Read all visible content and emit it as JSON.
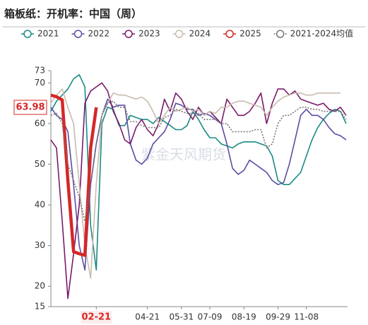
{
  "chart_data": {
    "type": "line",
    "title": "箱板纸：开机率：中国（周）",
    "watermark": "紫金天风期货",
    "categories": [
      null,
      null,
      null,
      null,
      null,
      null,
      null,
      null,
      "02-21",
      null,
      null,
      null,
      null,
      null,
      null,
      null,
      null,
      "04-21",
      null,
      null,
      null,
      null,
      null,
      "05-31",
      null,
      null,
      null,
      null,
      "07-09",
      null,
      null,
      null,
      null,
      null,
      "08-19",
      null,
      null,
      null,
      null,
      null,
      "09-29",
      null,
      null,
      null,
      null,
      "11-08",
      null,
      null,
      null,
      null,
      null,
      null,
      null
    ],
    "ylim": [
      15,
      73
    ],
    "yticks": [
      15,
      20,
      30,
      40,
      50,
      60,
      70,
      73
    ],
    "series": [
      {
        "name": "2021",
        "color": "#1a8a85",
        "values": [
          63,
          65.5,
          67,
          68.5,
          71,
          72,
          69,
          35,
          24,
          60,
          64,
          63.5,
          59.5,
          59.5,
          62,
          61.5,
          61,
          61,
          60,
          61.5,
          60.5,
          59.5,
          58.5,
          58.5,
          59.5,
          63,
          61,
          58.5,
          56.5,
          56.5,
          55,
          54.5,
          54,
          55,
          55.5,
          55.5,
          55.5,
          55,
          54.5,
          52,
          46,
          45,
          45,
          46.5,
          48,
          52,
          56,
          59,
          61,
          62.5,
          63.5,
          63,
          60
        ]
      },
      {
        "name": "2022",
        "color": "#5a4ea3",
        "values": [
          64,
          62,
          61,
          58,
          45,
          30,
          24,
          45,
          55,
          62,
          66,
          64,
          64.5,
          64.5,
          55,
          51,
          50,
          51.5,
          55,
          56.5,
          58,
          61,
          65,
          64.5,
          63.5,
          63.5,
          62,
          62.5,
          62,
          61,
          60,
          55,
          49,
          47.5,
          48.5,
          51,
          50,
          49,
          48,
          46,
          45,
          45.5,
          50,
          56,
          62,
          63.5,
          62,
          62,
          61,
          59,
          57.5,
          57,
          56
        ]
      },
      {
        "name": "2023",
        "color": "#7a1a6a",
        "values": [
          56,
          54,
          36,
          17,
          28,
          40,
          65,
          68,
          69,
          70,
          68,
          63,
          60,
          56,
          55,
          59,
          61,
          58.5,
          57,
          60,
          66,
          63,
          67.5,
          66,
          63,
          61,
          64,
          62,
          63,
          61.5,
          60,
          66,
          64,
          62,
          62,
          63,
          65,
          67.5,
          60,
          65,
          68.5,
          68.5,
          67,
          68,
          66,
          65.5,
          65,
          64.5,
          65,
          63.5,
          63,
          64,
          62
        ]
      },
      {
        "name": "2024",
        "color": "#c9bcae",
        "values": [
          65,
          67,
          68.5,
          64,
          60,
          45,
          30,
          22,
          45,
          62,
          65,
          67.5,
          67,
          67,
          66.5,
          66,
          66.5,
          65.5,
          63,
          60,
          62,
          64,
          63,
          63.5,
          64,
          63,
          63.5,
          62,
          63,
          62.5,
          64,
          64,
          65,
          65.5,
          65.5,
          65,
          64.5,
          64,
          62,
          64,
          65.5,
          66.5,
          67,
          67.5,
          67.5,
          67,
          67,
          67.5,
          67.5,
          67.5,
          67.5,
          67.5,
          null
        ]
      },
      {
        "name": "2025",
        "color": "#d62728",
        "values": [
          67,
          66.6,
          65.8,
          46,
          28.5,
          28,
          27.6,
          54,
          63.98,
          null,
          null,
          null,
          null,
          null,
          null,
          null,
          null,
          null,
          null,
          null,
          null,
          null,
          null,
          null,
          null,
          null,
          null,
          null,
          null,
          null,
          null,
          null,
          null,
          null,
          null,
          null,
          null,
          null,
          null,
          null,
          null,
          null,
          null,
          null,
          null,
          null,
          null,
          null,
          null,
          null,
          null,
          null,
          null
        ]
      },
      {
        "name": "2021-2024均值",
        "color": "#777777",
        "style": "dotted",
        "values": [
          62,
          62.5,
          60,
          50,
          46,
          42,
          36,
          45,
          55,
          62,
          65,
          65.5,
          64,
          64,
          60.5,
          60.5,
          59.5,
          59,
          59,
          59,
          61.5,
          62,
          63.5,
          63,
          62.5,
          62.5,
          62.5,
          61,
          61,
          61,
          60,
          60,
          58,
          58,
          58,
          58,
          58.5,
          58.5,
          54,
          55,
          60,
          62,
          62,
          63,
          64,
          64,
          63.5,
          63.5,
          63,
          63,
          63,
          63,
          61
        ]
      }
    ]
  }
}
